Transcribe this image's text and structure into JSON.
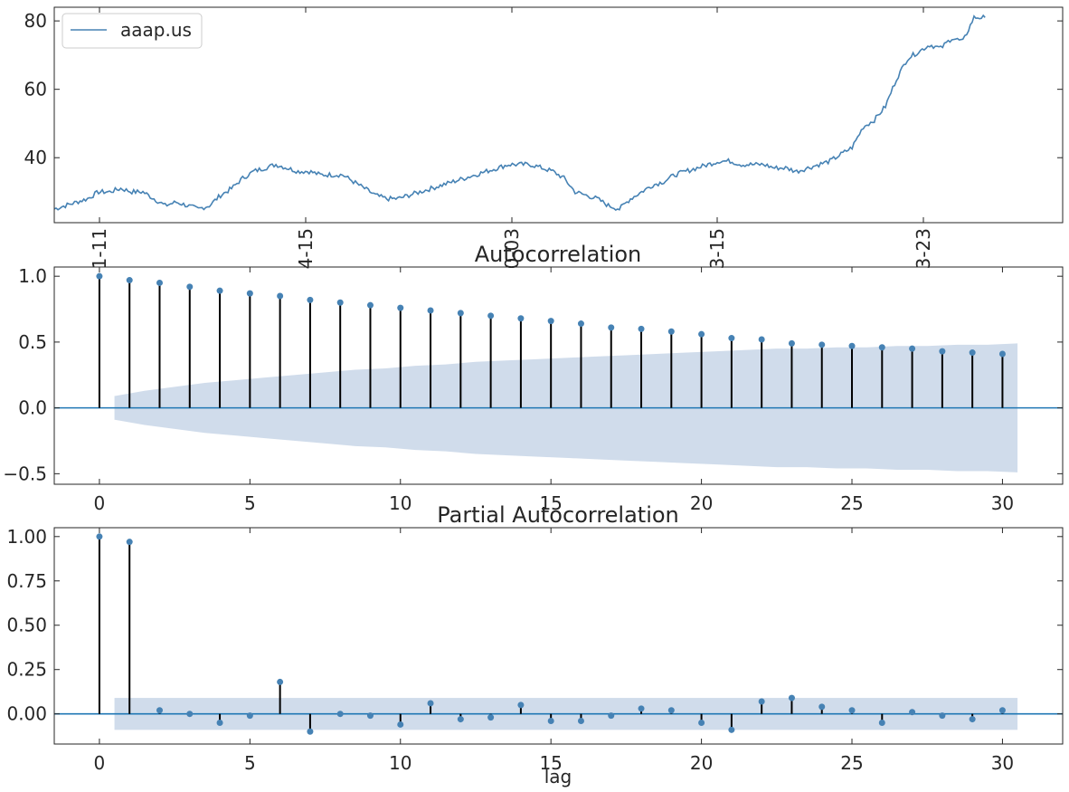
{
  "colors": {
    "line": "#4682b4",
    "stem": "#000000",
    "marker": "#4682b4",
    "band": "#b0c4de",
    "zero": "#1f77b4",
    "axis": "#262626"
  },
  "chart_data": [
    {
      "type": "line",
      "title": "",
      "legend": {
        "entries": [
          "aaap.us"
        ],
        "placement": "upper-left"
      },
      "xtick_labels": [
        "1-11",
        "4-15",
        "0-03",
        "3-15",
        "3-23"
      ],
      "ylim": [
        21,
        84
      ],
      "yticks": [
        40,
        60,
        80
      ],
      "series": [
        {
          "name": "aaap.us",
          "x_count": 460,
          "anchors": [
            [
              0,
              25
            ],
            [
              6,
              26
            ],
            [
              12,
              27
            ],
            [
              18,
              28
            ],
            [
              24,
              30
            ],
            [
              30,
              30
            ],
            [
              36,
              31
            ],
            [
              42,
              30
            ],
            [
              48,
              30
            ],
            [
              54,
              28
            ],
            [
              60,
              26
            ],
            [
              66,
              27
            ],
            [
              72,
              26
            ],
            [
              78,
              25
            ],
            [
              84,
              26
            ],
            [
              90,
              29
            ],
            [
              96,
              31
            ],
            [
              102,
              34
            ],
            [
              108,
              36
            ],
            [
              114,
              37
            ],
            [
              120,
              38
            ],
            [
              126,
              37
            ],
            [
              132,
              36
            ],
            [
              138,
              36
            ],
            [
              144,
              35
            ],
            [
              150,
              35
            ],
            [
              156,
              35
            ],
            [
              162,
              33
            ],
            [
              168,
              31
            ],
            [
              174,
              29
            ],
            [
              180,
              28
            ],
            [
              186,
              28
            ],
            [
              192,
              29
            ],
            [
              198,
              30
            ],
            [
              204,
              31
            ],
            [
              210,
              32
            ],
            [
              216,
              33
            ],
            [
              222,
              34
            ],
            [
              228,
              35
            ],
            [
              234,
              36
            ],
            [
              240,
              37
            ],
            [
              246,
              38
            ],
            [
              252,
              38
            ],
            [
              258,
              38
            ],
            [
              264,
              37
            ],
            [
              270,
              36
            ],
            [
              276,
              34
            ],
            [
              282,
              30
            ],
            [
              288,
              29
            ],
            [
              294,
              28
            ],
            [
              300,
              26
            ],
            [
              306,
              25
            ],
            [
              312,
              28
            ],
            [
              318,
              30
            ],
            [
              324,
              32
            ],
            [
              330,
              33
            ],
            [
              336,
              35
            ],
            [
              342,
              36
            ],
            [
              348,
              37
            ],
            [
              354,
              38
            ],
            [
              360,
              39
            ],
            [
              366,
              39
            ],
            [
              372,
              38
            ],
            [
              378,
              38
            ],
            [
              384,
              38
            ],
            [
              390,
              37
            ],
            [
              396,
              37
            ],
            [
              402,
              36
            ],
            [
              408,
              37
            ],
            [
              414,
              38
            ],
            [
              420,
              39
            ],
            [
              426,
              41
            ],
            [
              432,
              43
            ],
            [
              438,
              49
            ],
            [
              444,
              51
            ],
            [
              450,
              55
            ],
            [
              456,
              63
            ],
            [
              462,
              69
            ],
            [
              468,
              71
            ],
            [
              474,
              73
            ],
            [
              480,
              72
            ],
            [
              486,
              75
            ],
            [
              492,
              74
            ],
            [
              498,
              81
            ],
            [
              504,
              81
            ]
          ]
        }
      ]
    },
    {
      "type": "stem",
      "title": "Autocorrelation",
      "xlim": [
        -1.5,
        32
      ],
      "ylim": [
        -0.58,
        1.07
      ],
      "xticks": [
        0,
        5,
        10,
        15,
        20,
        25,
        30
      ],
      "yticks": [
        -0.5,
        0.0,
        0.5,
        1.0
      ],
      "ytick_labels": [
        "−0.5",
        "0.0",
        "0.5",
        "1.0"
      ],
      "x": [
        0,
        1,
        2,
        3,
        4,
        5,
        6,
        7,
        8,
        9,
        10,
        11,
        12,
        13,
        14,
        15,
        16,
        17,
        18,
        19,
        20,
        21,
        22,
        23,
        24,
        25,
        26,
        27,
        28,
        29,
        30
      ],
      "values": [
        1.0,
        0.97,
        0.95,
        0.92,
        0.89,
        0.87,
        0.85,
        0.82,
        0.8,
        0.78,
        0.76,
        0.74,
        0.72,
        0.7,
        0.68,
        0.66,
        0.64,
        0.61,
        0.6,
        0.58,
        0.56,
        0.53,
        0.52,
        0.49,
        0.48,
        0.47,
        0.46,
        0.45,
        0.43,
        0.42,
        0.41
      ],
      "confidence_band": [
        0.09,
        0.13,
        0.16,
        0.19,
        0.21,
        0.23,
        0.25,
        0.27,
        0.29,
        0.3,
        0.32,
        0.33,
        0.35,
        0.36,
        0.37,
        0.38,
        0.39,
        0.4,
        0.41,
        0.42,
        0.43,
        0.44,
        0.45,
        0.45,
        0.46,
        0.46,
        0.47,
        0.47,
        0.48,
        0.48,
        0.49
      ]
    },
    {
      "type": "stem",
      "title": "Partial Autocorrelation",
      "xlabel": "lag",
      "xlim": [
        -1.5,
        32
      ],
      "ylim": [
        -0.17,
        1.05
      ],
      "xticks": [
        0,
        5,
        10,
        15,
        20,
        25,
        30
      ],
      "yticks": [
        0.0,
        0.25,
        0.5,
        0.75,
        1.0
      ],
      "ytick_labels": [
        "0.00",
        "0.25",
        "0.50",
        "0.75",
        "1.00"
      ],
      "x": [
        0,
        1,
        2,
        3,
        4,
        5,
        6,
        7,
        8,
        9,
        10,
        11,
        12,
        13,
        14,
        15,
        16,
        17,
        18,
        19,
        20,
        21,
        22,
        23,
        24,
        25,
        26,
        27,
        28,
        29,
        30
      ],
      "values": [
        1.0,
        0.97,
        0.02,
        0.0,
        -0.05,
        -0.01,
        0.18,
        -0.1,
        0.0,
        -0.01,
        -0.06,
        0.06,
        -0.03,
        -0.02,
        0.05,
        -0.04,
        -0.04,
        -0.01,
        0.03,
        0.02,
        -0.05,
        -0.09,
        0.07,
        0.09,
        0.04,
        0.02,
        -0.05,
        0.01,
        -0.01,
        -0.03,
        0.02
      ],
      "confidence_band": 0.09
    }
  ]
}
